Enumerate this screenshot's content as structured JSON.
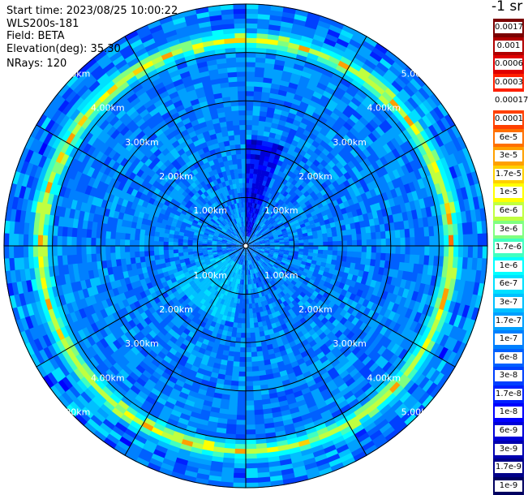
{
  "info": {
    "start_time": "Start time: 2023/08/25 10:00:22",
    "instrument": "WLS200s-181",
    "field": "Field: BETA",
    "elevation": "Elevation(deg): 35.30",
    "nrays": "NRays: 120"
  },
  "units_label": "-1 sr",
  "colorbar": {
    "labels": [
      "0.0017",
      "0.001",
      "0.0006",
      "0.0003",
      "0.00017",
      "0.0001",
      "6e-5",
      "3e-5",
      "1.7e-5",
      "1e-5",
      "6e-6",
      "3e-6",
      "1.7e-6",
      "1e-6",
      "6e-7",
      "3e-7",
      "1.7e-7",
      "1e-7",
      "6e-8",
      "3e-8",
      "1.7e-8",
      "1e-8",
      "6e-9",
      "3e-9",
      "1.7e-9",
      "1e-9"
    ],
    "colors": [
      "#7a0000",
      "#b00000",
      "#e00000",
      "#ff2000",
      "#ffffff",
      "#ff4000",
      "#ff7000",
      "#ffa000",
      "#ffd000",
      "#ffff00",
      "#c0ff40",
      "#80ff80",
      "#40ffc0",
      "#00ffff",
      "#00e0ff",
      "#00c0ff",
      "#00a0ff",
      "#0080ff",
      "#0060ff",
      "#0040ff",
      "#0020ff",
      "#0000ff",
      "#0000d8",
      "#0000b0",
      "#000088",
      "#000060"
    ]
  },
  "chart_data": {
    "type": "heatmap",
    "projection": "polar (PPI scan)",
    "range_unit": "km",
    "max_range_km": 5.0,
    "range_rings_km": [
      1.0,
      2.0,
      3.0,
      4.0,
      5.0
    ],
    "ring_labels": [
      "1.00km",
      "2.00km",
      "3.00km",
      "4.00km",
      "5.00km"
    ],
    "azimuth_spokes_deg": [
      0,
      30,
      60,
      90,
      120,
      150,
      180,
      210,
      240,
      270,
      300,
      330
    ],
    "field": "BETA",
    "color_scale": "log",
    "value_range": [
      1e-09,
      0.0017
    ],
    "background_level": 1e-07,
    "features": [
      {
        "name": "aerosol layer ring",
        "range_km": [
          4.15,
          4.35
        ],
        "level": 6e-06,
        "peak_level": 3e-05
      },
      {
        "name": "low-value sector",
        "azimuth_deg": [
          0,
          22
        ],
        "range_km": [
          0.2,
          2.2
        ],
        "level": 1e-08
      },
      {
        "name": "enhanced near-field patch",
        "azimuth_deg": [
          190,
          250
        ],
        "range_km": [
          0.4,
          1.6
        ],
        "level": 3e-07
      }
    ]
  }
}
